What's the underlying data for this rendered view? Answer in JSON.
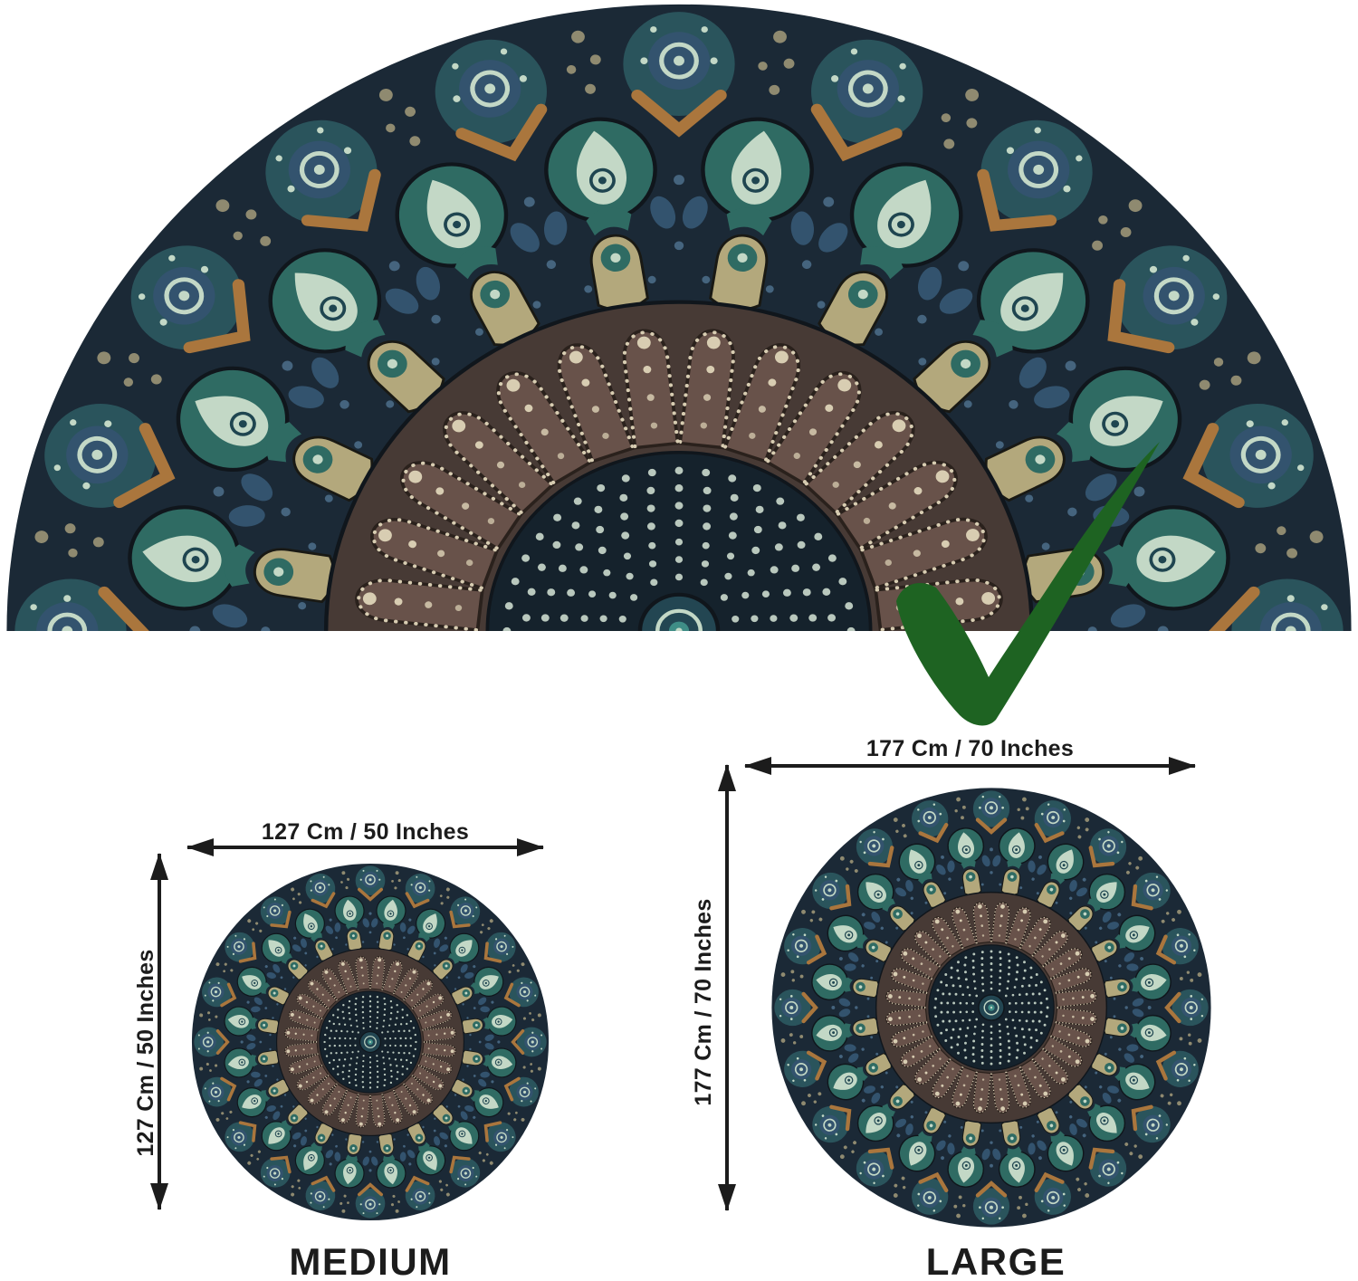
{
  "checkmark": {
    "icon": "checkmark",
    "color": "#1e6322"
  },
  "sizes": {
    "medium": {
      "name": "MEDIUM",
      "width_label": "127 Cm / 50 Inches",
      "height_label": "127 Cm / 50 Inches"
    },
    "large": {
      "name": "LARGE",
      "width_label": "177 Cm / 70 Inches",
      "height_label": "177 Cm / 70 Inches"
    }
  },
  "colors": {
    "ink": "#1c1c1c",
    "background": "#ffffff",
    "mandala": {
      "base": "#1b2936",
      "tealDark": "#2a545c",
      "teal": "#2f6b63",
      "tealDeep": "#1f4550",
      "slate": "#33536e",
      "slateLight": "#45647e",
      "mint": "#c3d8c6",
      "cream": "#b3a87c",
      "creamLight": "#d8cdb2",
      "orange": "#aa763d",
      "brownBg": "#473a35",
      "brown": "#68524a",
      "brownLine": "#2a211c",
      "navy": "#15222c",
      "dot": "#b9c8bd",
      "speckle": "#8f8a70",
      "edge": "#10161c",
      "centerDisc": "#234652",
      "centerDot": "#3f8d86"
    }
  }
}
